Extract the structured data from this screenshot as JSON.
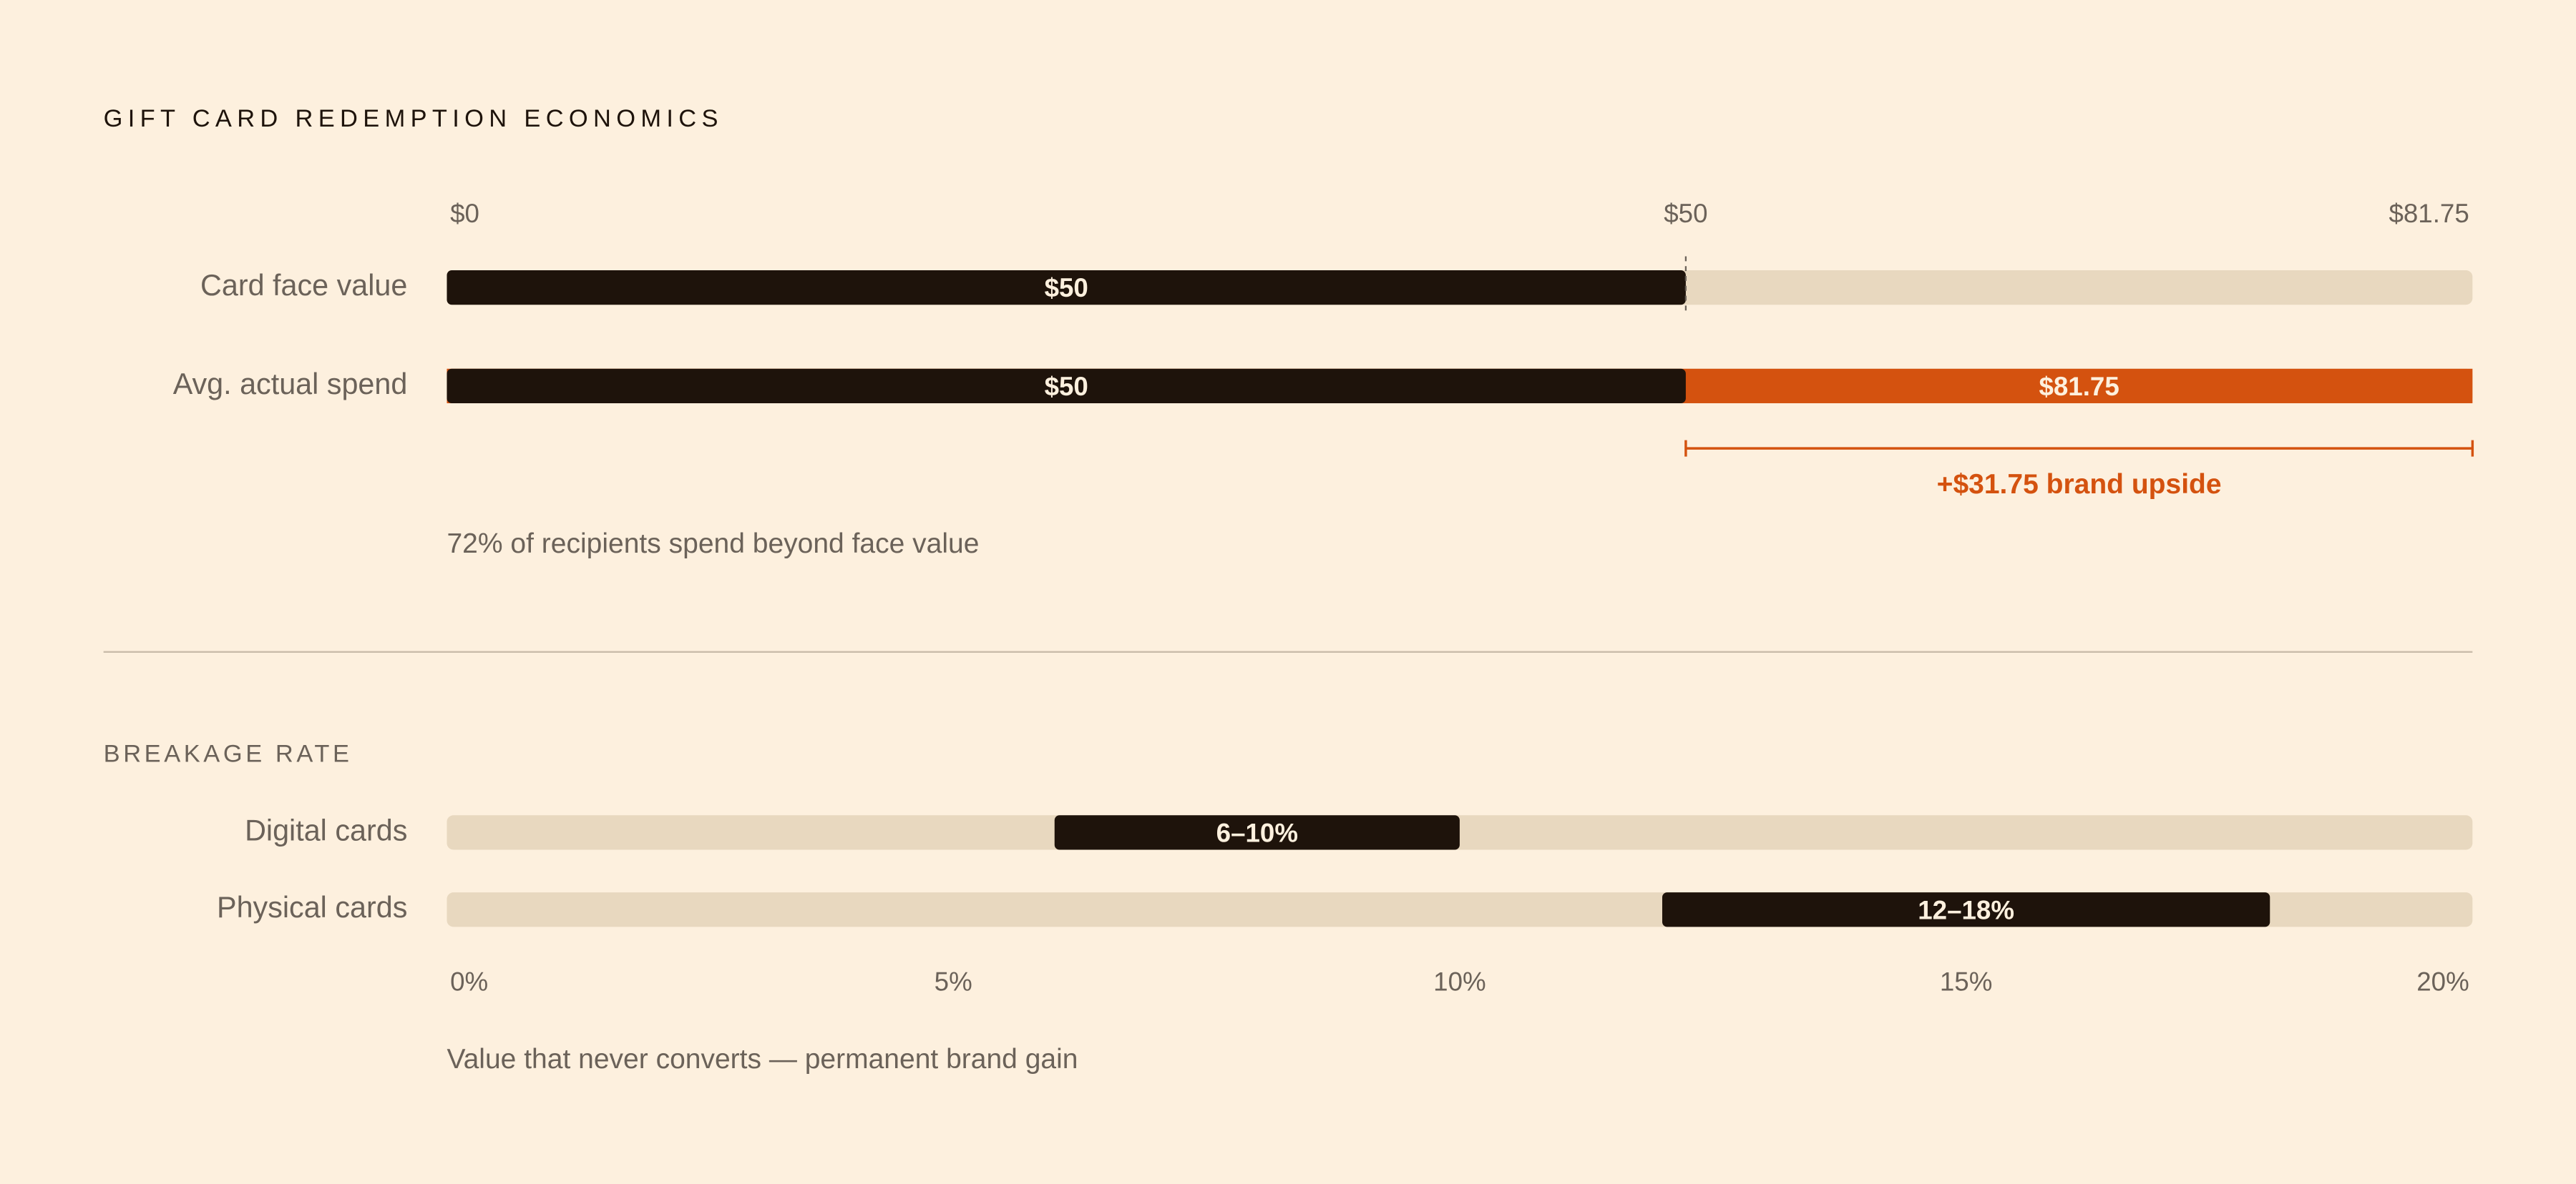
{
  "chart_data": [
    {
      "type": "bar",
      "title": "GIFT CARD REDEMPTION ECONOMICS",
      "categories": [
        "Card face value",
        "Avg. actual spend"
      ],
      "series": [
        {
          "color": "#1e130b",
          "values": [
            50,
            50
          ],
          "value_labels": [
            "$50",
            "$50"
          ]
        },
        {
          "color": "#d4520f",
          "values": [
            null,
            81.75
          ],
          "value_labels": [
            null,
            "$81.75"
          ]
        }
      ],
      "xlim": [
        0,
        81.75
      ],
      "xticks": [
        {
          "value": 0,
          "label": "$0"
        },
        {
          "value": 50,
          "label": "$50"
        },
        {
          "value": 81.75,
          "label": "$81.75"
        }
      ],
      "track_color": "#e8d8bf",
      "annotation": "+$31.75 brand upside",
      "note": "72% of recipients spend beyond face value"
    },
    {
      "type": "range",
      "title": "BREAKAGE RATE",
      "categories": [
        "Digital cards",
        "Physical cards"
      ],
      "low": [
        6,
        12
      ],
      "high": [
        10,
        18
      ],
      "value_labels": [
        "6–10%",
        "12–18%"
      ],
      "color": "#1e130b",
      "xlim": [
        0,
        20
      ],
      "xticks": [
        {
          "value": 0,
          "label": "0%"
        },
        {
          "value": 5,
          "label": "5%"
        },
        {
          "value": 10,
          "label": "10%"
        },
        {
          "value": 15,
          "label": "15%"
        },
        {
          "value": 20,
          "label": "20%"
        }
      ],
      "track_color": "#e8d8bf",
      "note": "Value that never converts — permanent brand gain"
    }
  ]
}
